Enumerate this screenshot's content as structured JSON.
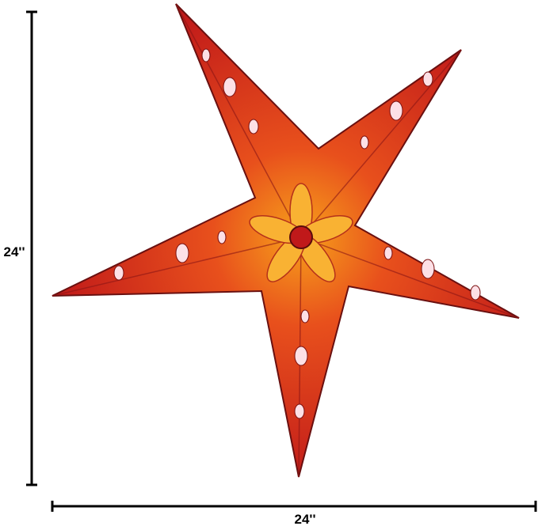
{
  "dimensions": {
    "height": "24''",
    "width": "24''"
  }
}
